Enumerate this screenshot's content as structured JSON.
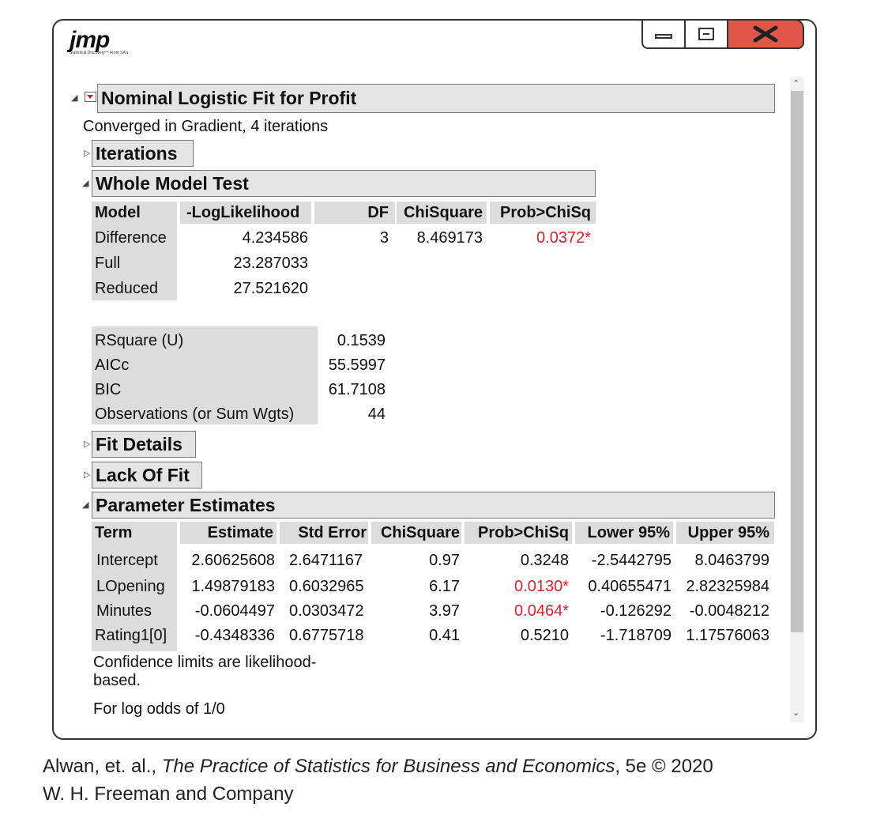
{
  "window": {
    "logo": "jmp",
    "logo_tagline": "Statistical Discovery™ From SAS"
  },
  "report": {
    "title": "Nominal Logistic Fit for Profit",
    "convergence": "Converged in Gradient, 4 iterations",
    "sections": {
      "iterations": "Iterations",
      "whole_model": "Whole Model Test",
      "fit_details": "Fit Details",
      "lack_of_fit": "Lack Of Fit",
      "param_est": "Parameter Estimates"
    }
  },
  "whole_model_test": {
    "headers": [
      "Model",
      "-LogLikelihood",
      "DF",
      "ChiSquare",
      "Prob>ChiSq"
    ],
    "rows": [
      {
        "model": "Difference",
        "loglik": "4.234586",
        "df": "3",
        "chisq": "8.469173",
        "prob": "0.0372*"
      },
      {
        "model": "Full",
        "loglik": "23.287033",
        "df": "",
        "chisq": "",
        "prob": ""
      },
      {
        "model": "Reduced",
        "loglik": "27.521620",
        "df": "",
        "chisq": "",
        "prob": ""
      }
    ]
  },
  "fit_stats": [
    {
      "label": "RSquare (U)",
      "value": "0.1539"
    },
    {
      "label": "AICc",
      "value": "55.5997"
    },
    {
      "label": "BIC",
      "value": "61.7108"
    },
    {
      "label": "Observations (or Sum Wgts)",
      "value": "44"
    }
  ],
  "parameter_estimates": {
    "headers": [
      "Term",
      "Estimate",
      "Std Error",
      "ChiSquare",
      "Prob>ChiSq",
      "Lower 95%",
      "Upper 95%"
    ],
    "rows": [
      {
        "term": "Intercept",
        "est": "2.60625608",
        "se": "2.6471167",
        "chisq": "0.97",
        "prob": "0.3248",
        "lower": "-2.5442795",
        "upper": "8.0463799"
      },
      {
        "term": "LOpening",
        "est": "1.49879183",
        "se": "0.6032965",
        "chisq": "6.17",
        "prob": "0.0130*",
        "lower": "0.40655471",
        "upper": "2.82325984"
      },
      {
        "term": "Minutes",
        "est": "-0.0604497",
        "se": "0.0303472",
        "chisq": "3.97",
        "prob": "0.0464*",
        "lower": "-0.126292",
        "upper": "-0.0048212"
      },
      {
        "term": "Rating1[0]",
        "est": "-0.4348336",
        "se": "0.6775718",
        "chisq": "0.41",
        "prob": "0.5210",
        "lower": "-1.718709",
        "upper": "1.17576063"
      }
    ],
    "note1": "Confidence limits are likelihood-",
    "note2": "based.",
    "note3": "For log odds of 1/0"
  },
  "caption": {
    "line1_prefix": "Alwan, et. al., ",
    "line1_title": "The Practice of Statistics for Business and Economics",
    "line1_suffix": ", 5e © 2020",
    "line2": "W. H. Freeman and Company"
  },
  "colors": {
    "significant": "#e0202e",
    "header_bg": "#e4e4e4",
    "close_button": "#e0574a"
  }
}
